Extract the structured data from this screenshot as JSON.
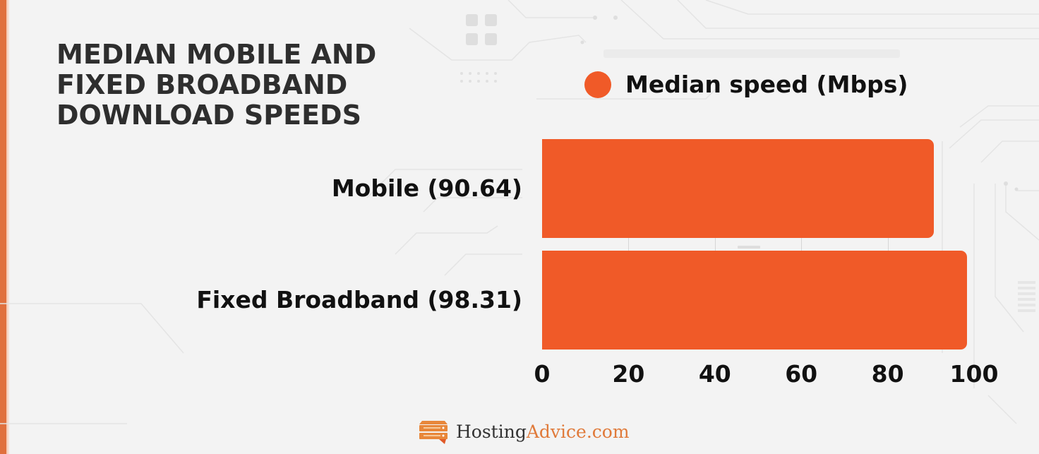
{
  "title": {
    "lines": [
      "MEDIAN MOBILE AND",
      "FIXED BROADBAND",
      "DOWNLOAD SPEEDS"
    ]
  },
  "legend": {
    "label": "Median speed (Mbps)",
    "color": "#f05a28"
  },
  "colors": {
    "bar": "#f05a28",
    "accent_stripe": "#e0703e",
    "background": "#f3f3f3",
    "title_text": "#2e2e2e"
  },
  "categories": [
    {
      "label": "Mobile (90.64)",
      "value": 90.64
    },
    {
      "label": "Fixed Broadband (98.31)",
      "value": 98.31
    }
  ],
  "axis": {
    "ticks": [
      "0",
      "20",
      "40",
      "60",
      "80",
      "100"
    ]
  },
  "footer": {
    "brand_part1": "Hosting",
    "brand_part2": "Advice.com",
    "logo_icon": "server-speech-bubble-icon"
  },
  "chart_data": {
    "type": "bar",
    "orientation": "horizontal",
    "title": "MEDIAN MOBILE AND FIXED BROADBAND DOWNLOAD SPEEDS",
    "categories": [
      "Mobile (90.64)",
      "Fixed Broadband (98.31)"
    ],
    "series": [
      {
        "name": "Median speed (Mbps)",
        "values": [
          90.64,
          98.31
        ],
        "color": "#f05a28"
      }
    ],
    "xlabel": "",
    "ylabel": "",
    "xlim": [
      0,
      100
    ],
    "xticks": [
      0,
      20,
      40,
      60,
      80,
      100
    ],
    "grid": false,
    "legend_position": "top-right"
  }
}
